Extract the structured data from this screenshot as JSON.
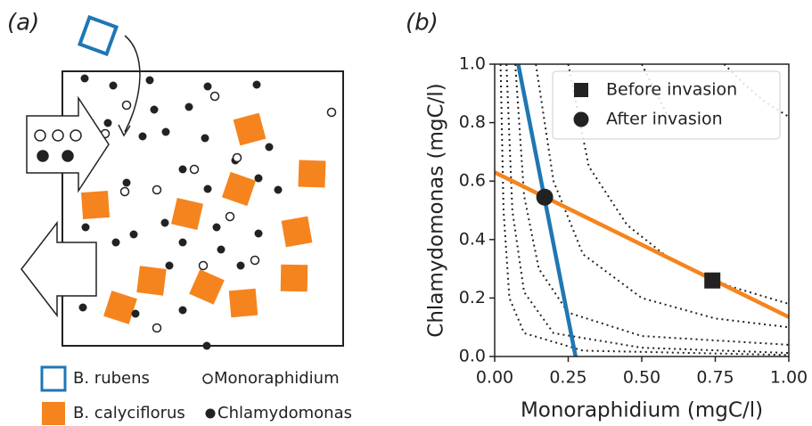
{
  "panels": {
    "a": "(a)",
    "b": "(b)"
  },
  "diagram": {
    "legend": [
      "B. rubens",
      "Monoraphidium",
      "B. calyciflorus",
      "Chlamydomonas"
    ]
  },
  "chart_data": {
    "type": "line",
    "x_label": "Monoraphidium (mgC/l)",
    "y_label": "Chlamydomonas (mgC/l)",
    "xlim": [
      0,
      1
    ],
    "ylim": [
      0,
      1
    ],
    "xticks": [
      {
        "value": 0,
        "label": "0.00"
      },
      0.25,
      {
        "value": 0.5,
        "label": "0.50"
      },
      0.75,
      {
        "value": 1,
        "label": "1.00"
      }
    ],
    "yticks": [
      {
        "value": 0,
        "label": "0.0"
      },
      0.2,
      0.4,
      0.6,
      0.8,
      {
        "value": 1,
        "label": "1.0"
      }
    ],
    "legend": "upper right",
    "series": [
      {
        "style": "dotted",
        "color": "#222",
        "x": [
          0.02,
          0.03,
          0.05,
          0.1,
          0.3,
          1.0
        ],
        "values": [
          1.0,
          0.5,
          0.2,
          0.08,
          0.02,
          0.005
        ]
      },
      {
        "style": "dotted",
        "color": "#222",
        "x": [
          0.04,
          0.06,
          0.1,
          0.2,
          0.5,
          1.0
        ],
        "values": [
          1.0,
          0.5,
          0.22,
          0.08,
          0.03,
          0.012
        ]
      },
      {
        "style": "dotted",
        "color": "#222",
        "x": [
          0.07,
          0.1,
          0.15,
          0.25,
          0.5,
          1.0
        ],
        "values": [
          1.0,
          0.55,
          0.3,
          0.15,
          0.07,
          0.04
        ]
      },
      {
        "style": "dotted",
        "color": "#222",
        "x": [
          0.14,
          0.2,
          0.3,
          0.5,
          0.75,
          1.0
        ],
        "values": [
          1.0,
          0.6,
          0.35,
          0.2,
          0.13,
          0.1
        ]
      },
      {
        "style": "dotted",
        "color": "#222",
        "x": [
          0.25,
          0.32,
          0.45,
          0.6,
          0.8,
          1.0
        ],
        "values": [
          1.0,
          0.65,
          0.45,
          0.33,
          0.24,
          0.18
        ]
      },
      {
        "style": "dotted",
        "color": "#222",
        "x": [
          0.5,
          0.55,
          0.6
        ],
        "values": [
          1.0,
          0.9,
          0.8
        ]
      },
      {
        "style": "dotted",
        "color": "#222",
        "x": [
          0.78,
          0.85,
          0.92,
          1.0
        ],
        "values": [
          1.0,
          0.93,
          0.87,
          0.82
        ]
      },
      {
        "style": "solid",
        "color": "#1f77b4",
        "x": [
          0.08,
          0.275
        ],
        "values": [
          1.0,
          0.0
        ]
      },
      {
        "style": "solid",
        "color": "#f5841f",
        "x": [
          0,
          1
        ],
        "values": [
          0.63,
          0.135
        ]
      },
      {
        "style": "marker",
        "marker": "square",
        "name": "Before invasion",
        "color": "#222",
        "x": [
          0.74
        ],
        "values": [
          0.26
        ]
      },
      {
        "style": "marker",
        "marker": "circle",
        "name": "After invasion",
        "color": "#222",
        "x": [
          0.17
        ],
        "values": [
          0.545
        ]
      }
    ]
  }
}
